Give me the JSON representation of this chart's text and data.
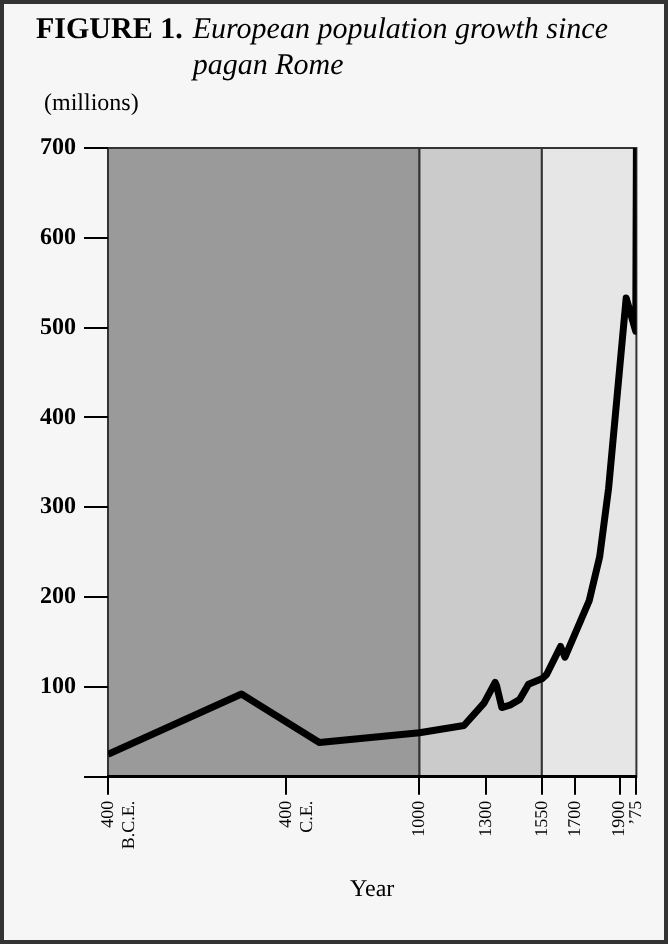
{
  "chart_data": {
    "type": "line",
    "title": "FIGURE 1. European population growth since pagan Rome",
    "ylabel": "(millions)",
    "xlabel": "Year",
    "x": [
      -400,
      200,
      550,
      1000,
      1200,
      1290,
      1340,
      1347,
      1370,
      1410,
      1450,
      1490,
      1550,
      1572,
      1634,
      1654,
      1763,
      1810,
      1850,
      1929,
      1972,
      1975
    ],
    "series": [
      {
        "color": "#000000",
        "values": [
          25,
          92,
          38,
          49,
          57,
          82,
          105,
          101,
          77,
          80,
          86,
          103,
          109,
          114,
          145,
          133,
          196,
          245,
          321,
          533,
          496,
          700
        ]
      }
    ],
    "xlim": [
      -400,
      1975
    ],
    "xticks": [
      {
        "value": -400,
        "label": "400 B.C.E."
      },
      {
        "value": 400,
        "label": "400 C.E."
      },
      1000,
      1300,
      1550,
      1700,
      1900,
      {
        "value": 1975,
        "label": "’75"
      }
    ],
    "ylim": [
      0,
      700
    ],
    "yticks": [
      {
        "value": 0,
        "label": null
      },
      100,
      200,
      300,
      400,
      500,
      600,
      700
    ],
    "bands": [
      {
        "axis": "x",
        "from": -400,
        "to": 1000,
        "color": "#9a9a9a"
      },
      {
        "axis": "x",
        "from": 1000,
        "to": 1550,
        "color": "#cbcbcb"
      },
      {
        "axis": "x",
        "from": 1550,
        "to": 1975,
        "color": "#e6e6e6"
      }
    ],
    "grid": false,
    "legend": false,
    "marker": "none",
    "line_style": "solid"
  }
}
